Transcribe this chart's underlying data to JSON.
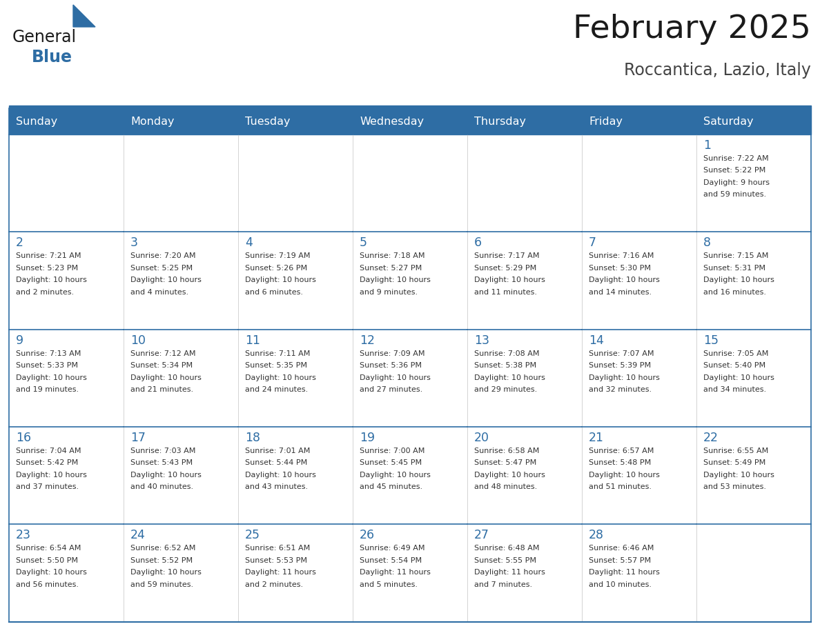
{
  "title": "February 2025",
  "subtitle": "Roccantica, Lazio, Italy",
  "header_bg": "#2E6DA4",
  "header_text_color": "#FFFFFF",
  "day_headers": [
    "Sunday",
    "Monday",
    "Tuesday",
    "Wednesday",
    "Thursday",
    "Friday",
    "Saturday"
  ],
  "title_color": "#1a1a1a",
  "subtitle_color": "#444444",
  "day_num_color": "#2E6DA4",
  "info_color": "#333333",
  "border_color": "#2E6DA4",
  "logo_general_color": "#1a1a1a",
  "logo_blue_color": "#2E6DA4",
  "weeks": [
    [
      {
        "day": null,
        "info": ""
      },
      {
        "day": null,
        "info": ""
      },
      {
        "day": null,
        "info": ""
      },
      {
        "day": null,
        "info": ""
      },
      {
        "day": null,
        "info": ""
      },
      {
        "day": null,
        "info": ""
      },
      {
        "day": 1,
        "info": "Sunrise: 7:22 AM\nSunset: 5:22 PM\nDaylight: 9 hours\nand 59 minutes."
      }
    ],
    [
      {
        "day": 2,
        "info": "Sunrise: 7:21 AM\nSunset: 5:23 PM\nDaylight: 10 hours\nand 2 minutes."
      },
      {
        "day": 3,
        "info": "Sunrise: 7:20 AM\nSunset: 5:25 PM\nDaylight: 10 hours\nand 4 minutes."
      },
      {
        "day": 4,
        "info": "Sunrise: 7:19 AM\nSunset: 5:26 PM\nDaylight: 10 hours\nand 6 minutes."
      },
      {
        "day": 5,
        "info": "Sunrise: 7:18 AM\nSunset: 5:27 PM\nDaylight: 10 hours\nand 9 minutes."
      },
      {
        "day": 6,
        "info": "Sunrise: 7:17 AM\nSunset: 5:29 PM\nDaylight: 10 hours\nand 11 minutes."
      },
      {
        "day": 7,
        "info": "Sunrise: 7:16 AM\nSunset: 5:30 PM\nDaylight: 10 hours\nand 14 minutes."
      },
      {
        "day": 8,
        "info": "Sunrise: 7:15 AM\nSunset: 5:31 PM\nDaylight: 10 hours\nand 16 minutes."
      }
    ],
    [
      {
        "day": 9,
        "info": "Sunrise: 7:13 AM\nSunset: 5:33 PM\nDaylight: 10 hours\nand 19 minutes."
      },
      {
        "day": 10,
        "info": "Sunrise: 7:12 AM\nSunset: 5:34 PM\nDaylight: 10 hours\nand 21 minutes."
      },
      {
        "day": 11,
        "info": "Sunrise: 7:11 AM\nSunset: 5:35 PM\nDaylight: 10 hours\nand 24 minutes."
      },
      {
        "day": 12,
        "info": "Sunrise: 7:09 AM\nSunset: 5:36 PM\nDaylight: 10 hours\nand 27 minutes."
      },
      {
        "day": 13,
        "info": "Sunrise: 7:08 AM\nSunset: 5:38 PM\nDaylight: 10 hours\nand 29 minutes."
      },
      {
        "day": 14,
        "info": "Sunrise: 7:07 AM\nSunset: 5:39 PM\nDaylight: 10 hours\nand 32 minutes."
      },
      {
        "day": 15,
        "info": "Sunrise: 7:05 AM\nSunset: 5:40 PM\nDaylight: 10 hours\nand 34 minutes."
      }
    ],
    [
      {
        "day": 16,
        "info": "Sunrise: 7:04 AM\nSunset: 5:42 PM\nDaylight: 10 hours\nand 37 minutes."
      },
      {
        "day": 17,
        "info": "Sunrise: 7:03 AM\nSunset: 5:43 PM\nDaylight: 10 hours\nand 40 minutes."
      },
      {
        "day": 18,
        "info": "Sunrise: 7:01 AM\nSunset: 5:44 PM\nDaylight: 10 hours\nand 43 minutes."
      },
      {
        "day": 19,
        "info": "Sunrise: 7:00 AM\nSunset: 5:45 PM\nDaylight: 10 hours\nand 45 minutes."
      },
      {
        "day": 20,
        "info": "Sunrise: 6:58 AM\nSunset: 5:47 PM\nDaylight: 10 hours\nand 48 minutes."
      },
      {
        "day": 21,
        "info": "Sunrise: 6:57 AM\nSunset: 5:48 PM\nDaylight: 10 hours\nand 51 minutes."
      },
      {
        "day": 22,
        "info": "Sunrise: 6:55 AM\nSunset: 5:49 PM\nDaylight: 10 hours\nand 53 minutes."
      }
    ],
    [
      {
        "day": 23,
        "info": "Sunrise: 6:54 AM\nSunset: 5:50 PM\nDaylight: 10 hours\nand 56 minutes."
      },
      {
        "day": 24,
        "info": "Sunrise: 6:52 AM\nSunset: 5:52 PM\nDaylight: 10 hours\nand 59 minutes."
      },
      {
        "day": 25,
        "info": "Sunrise: 6:51 AM\nSunset: 5:53 PM\nDaylight: 11 hours\nand 2 minutes."
      },
      {
        "day": 26,
        "info": "Sunrise: 6:49 AM\nSunset: 5:54 PM\nDaylight: 11 hours\nand 5 minutes."
      },
      {
        "day": 27,
        "info": "Sunrise: 6:48 AM\nSunset: 5:55 PM\nDaylight: 11 hours\nand 7 minutes."
      },
      {
        "day": 28,
        "info": "Sunrise: 6:46 AM\nSunset: 5:57 PM\nDaylight: 11 hours\nand 10 minutes."
      },
      {
        "day": null,
        "info": ""
      }
    ]
  ],
  "fig_width": 11.88,
  "fig_height": 9.18,
  "dpi": 100
}
